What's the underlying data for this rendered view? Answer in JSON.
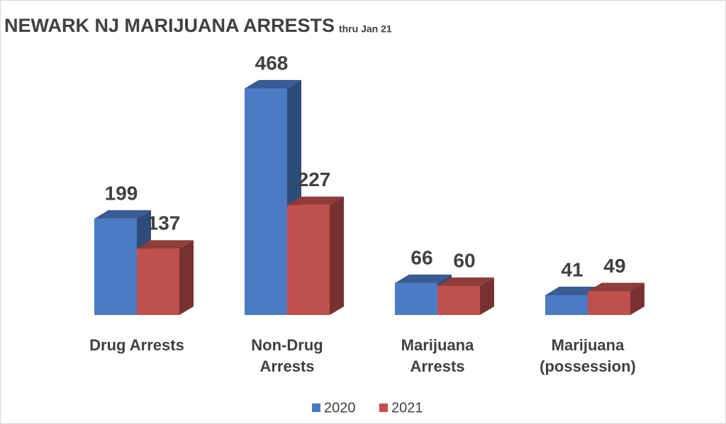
{
  "chart_data": {
    "type": "bar3d",
    "title": "NEWARK NJ MARIJUANA ARRESTS",
    "subtitle": "thru Jan 21",
    "categories": [
      "Drug Arrests",
      "Non-Drug Arrests",
      "Marijuana Arrests",
      "Marijuana (possession)"
    ],
    "series": [
      {
        "name": "2020",
        "color": "#4a7bc4",
        "values": [
          199,
          468,
          66,
          41
        ]
      },
      {
        "name": "2021",
        "color": "#c0504d",
        "values": [
          137,
          227,
          60,
          49
        ]
      }
    ],
    "legend": "bottom"
  }
}
